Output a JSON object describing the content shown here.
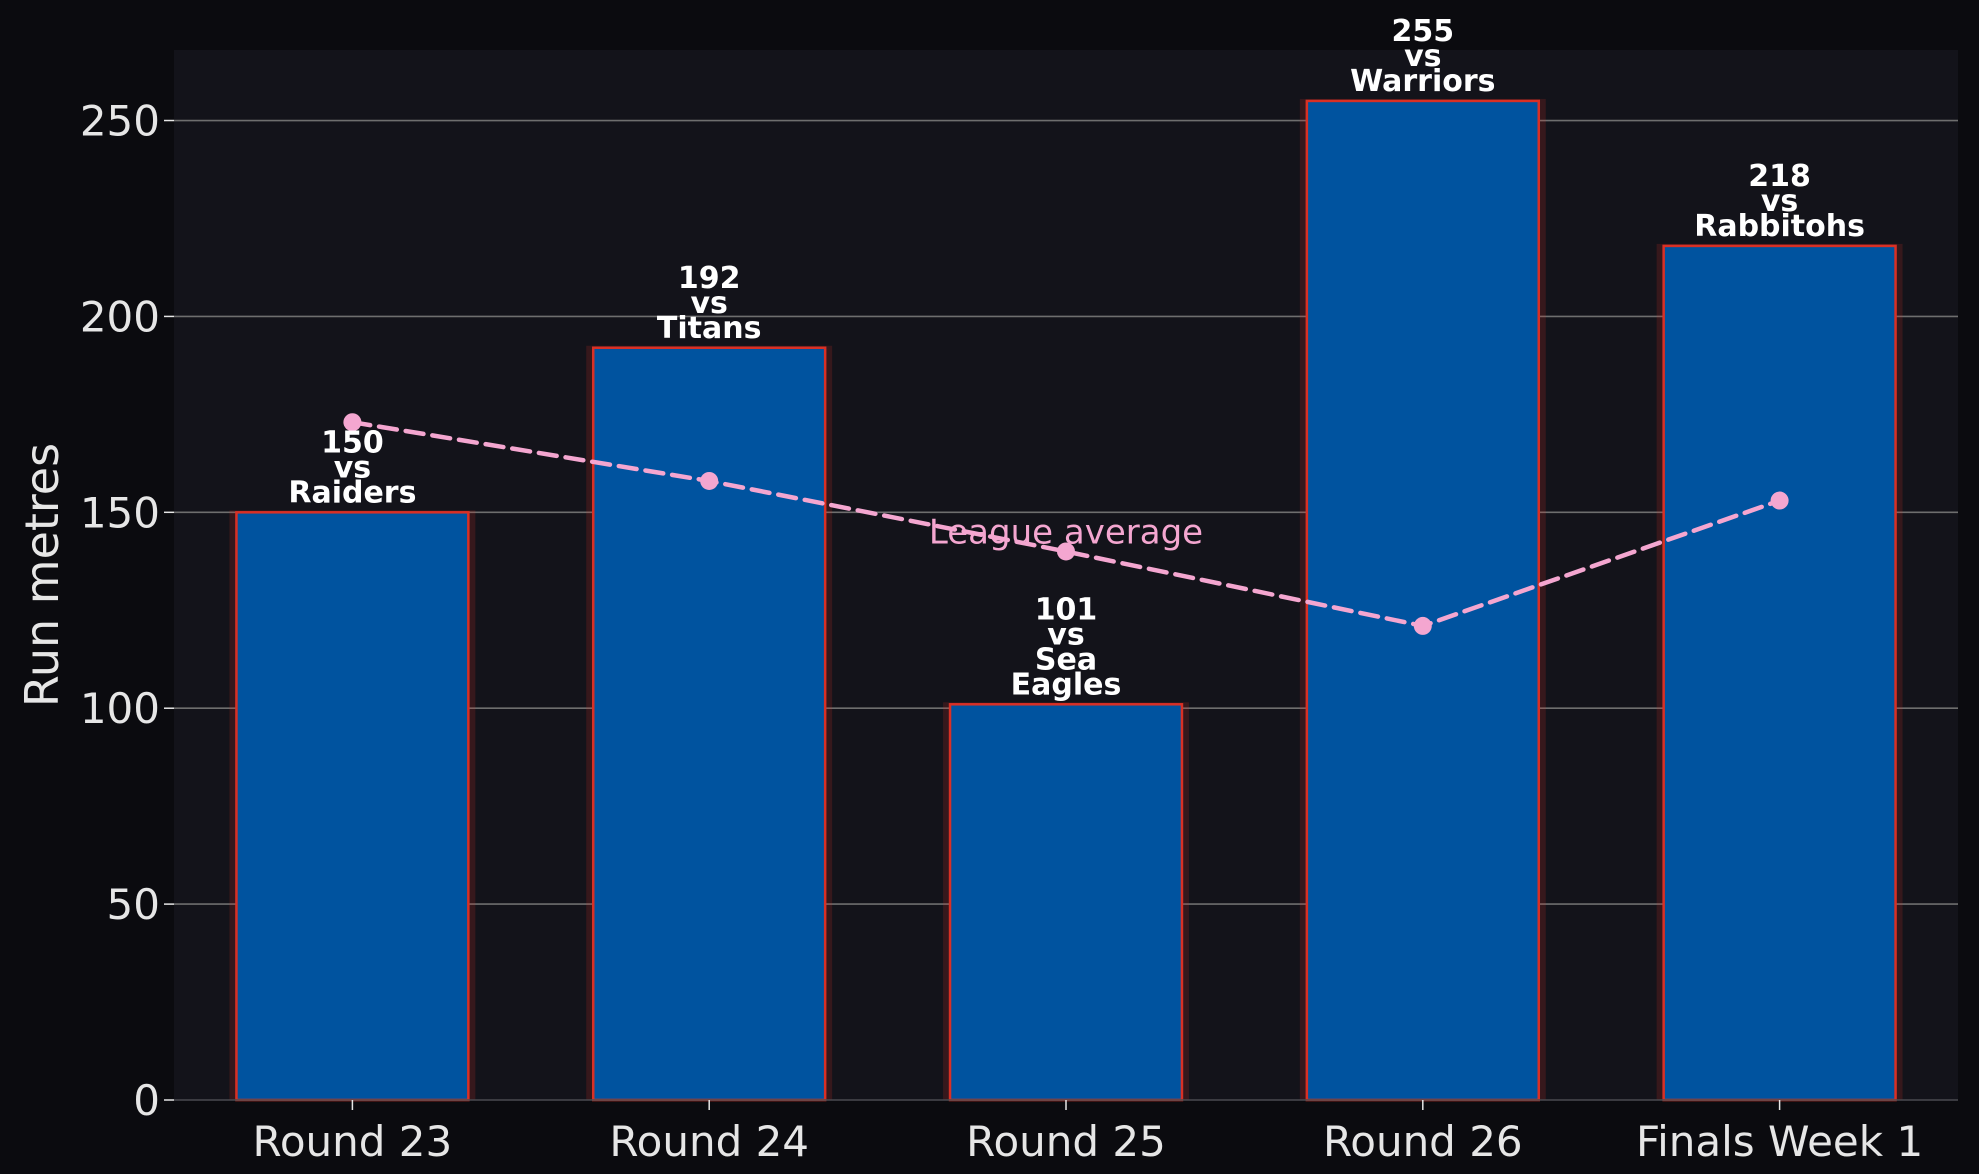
{
  "chart_data": {
    "type": "bar",
    "categories": [
      "Round 23",
      "Round 24",
      "Round 25",
      "Round 26",
      "Finals Week 1"
    ],
    "series": [
      {
        "values": [
          150,
          192,
          101,
          255,
          218
        ],
        "labels": [
          "150\nvs\nRaiders",
          "192\nvs\nTitans",
          "101\nvs\nSea\nEagles",
          "255\nvs\nWarriors",
          "218\nvs\nRabbitohs"
        ],
        "color": "#00539f",
        "edge_color": "#d93025"
      },
      {
        "name": "League average",
        "type": "line",
        "style": "dashed",
        "values": [
          173,
          158,
          140,
          121,
          153
        ],
        "color": "#f4a6d0"
      }
    ],
    "xlabel": "",
    "ylabel": "Run metres",
    "yticks": [
      0,
      50,
      100,
      150,
      200,
      250
    ],
    "ylim": [
      0,
      268
    ],
    "grid": "horizontal",
    "colors": {
      "background": "#0b0b0f",
      "plot_background": "#13131a",
      "grid": "#6e6e6e",
      "text": "#e6e6e6"
    }
  }
}
